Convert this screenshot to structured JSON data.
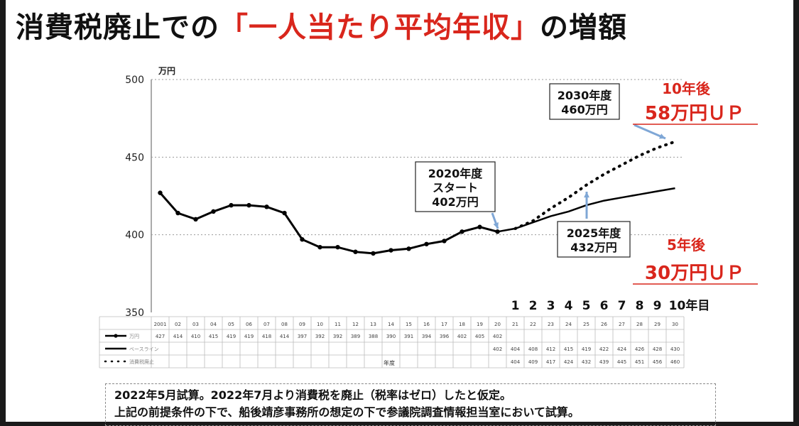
{
  "title": {
    "main": "消費税廃止での",
    "highlight": "「一人当たり平均年収」",
    "tail": "の増額"
  },
  "chart_data": {
    "type": "line",
    "ylabel": "万円",
    "xlabel": "年度",
    "ylim": [
      350,
      500
    ],
    "yticks": [
      350,
      400,
      450,
      500
    ],
    "grid": true,
    "categories": [
      "2001",
      "02",
      "03",
      "04",
      "05",
      "06",
      "07",
      "08",
      "09",
      "10",
      "11",
      "12",
      "13",
      "14",
      "15",
      "16",
      "17",
      "18",
      "19",
      "20",
      "21",
      "22",
      "23",
      "24",
      "25",
      "26",
      "27",
      "28",
      "29",
      "30"
    ],
    "year_counts": [
      "1",
      "2",
      "3",
      "4",
      "5",
      "6",
      "7",
      "8",
      "9",
      "10年目"
    ],
    "series": [
      {
        "name": "万円",
        "style": "solid-marker",
        "color": "#000000",
        "values": [
          427,
          414,
          410,
          415,
          419,
          419,
          418,
          414,
          397,
          392,
          392,
          389,
          388,
          390,
          391,
          394,
          396,
          402,
          405,
          402,
          null,
          null,
          null,
          null,
          null,
          null,
          null,
          null,
          null,
          null
        ]
      },
      {
        "name": "ベースライン",
        "style": "solid",
        "color": "#000000",
        "values": [
          null,
          null,
          null,
          null,
          null,
          null,
          null,
          null,
          null,
          null,
          null,
          null,
          null,
          null,
          null,
          null,
          null,
          null,
          null,
          402,
          404,
          408,
          412,
          415,
          419,
          422,
          424,
          426,
          428,
          430
        ]
      },
      {
        "name": "消費税廃止",
        "style": "dotted",
        "color": "#000000",
        "values": [
          null,
          null,
          null,
          null,
          null,
          null,
          null,
          null,
          null,
          null,
          null,
          null,
          null,
          null,
          null,
          null,
          null,
          null,
          null,
          null,
          404,
          409,
          417,
          424,
          432,
          439,
          445,
          451,
          456,
          460
        ]
      }
    ],
    "annotations": [
      {
        "text": "2020年度\nスタート\n402万円"
      },
      {
        "text": "2025年度\n432万円"
      },
      {
        "text": "2030年度\n460万円"
      },
      {
        "text": "10年後",
        "color": "#d9261c"
      },
      {
        "text": "58万円ＵＰ",
        "color": "#d9261c"
      },
      {
        "text": "5年後",
        "color": "#d9261c"
      },
      {
        "text": "30万円ＵＰ",
        "color": "#d9261c"
      }
    ]
  },
  "note": {
    "line1": "2022年5月試算。2022年7月より消費税を廃止（税率はゼロ）したと仮定。",
    "line2": "上記の前提条件の下で、船後靖彦事務所の想定の下で参議院調査情報担当室において試算。"
  }
}
